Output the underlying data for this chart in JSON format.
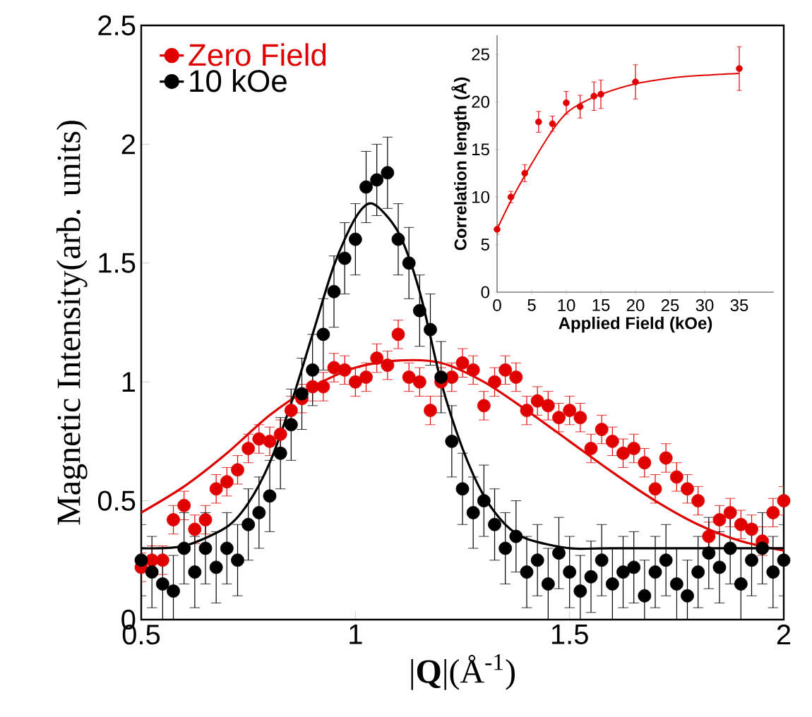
{
  "chart_data": [
    {
      "type": "scatter",
      "xlabel": "|**Q**|(Å$^{-1}$)",
      "ylabel": "Magnetic Intensity(arb. units)",
      "xlim": [
        0.5,
        2
      ],
      "ylim": [
        0,
        2.5
      ],
      "xticks": [
        0.5,
        1,
        1.5,
        2
      ],
      "yticks": [
        0,
        0.5,
        1,
        1.5,
        2,
        2.5
      ],
      "legend": "top left",
      "x": [
        0.5,
        0.525,
        0.55,
        0.575,
        0.6,
        0.625,
        0.65,
        0.675,
        0.7,
        0.725,
        0.75,
        0.775,
        0.8,
        0.825,
        0.85,
        0.875,
        0.9,
        0.925,
        0.95,
        0.975,
        1.0,
        1.025,
        1.05,
        1.075,
        1.1,
        1.125,
        1.15,
        1.175,
        1.2,
        1.225,
        1.25,
        1.275,
        1.3,
        1.325,
        1.35,
        1.375,
        1.4,
        1.425,
        1.45,
        1.475,
        1.5,
        1.525,
        1.55,
        1.575,
        1.6,
        1.625,
        1.65,
        1.675,
        1.7,
        1.725,
        1.75,
        1.775,
        1.8,
        1.825,
        1.85,
        1.875,
        1.9,
        1.925,
        1.95,
        1.975,
        2.0
      ],
      "series": [
        {
          "name": "Zero Field",
          "marker": "circle",
          "color": "#e00000",
          "values": [
            0.22,
            0.25,
            0.25,
            0.42,
            0.48,
            0.38,
            0.42,
            0.55,
            0.58,
            0.63,
            0.72,
            0.76,
            0.75,
            0.78,
            0.88,
            0.93,
            0.98,
            0.98,
            1.06,
            1.05,
            1.0,
            1.02,
            1.1,
            1.07,
            1.2,
            1.02,
            1.0,
            0.88,
            1.0,
            1.02,
            1.08,
            1.05,
            0.9,
            1.0,
            1.05,
            1.02,
            0.88,
            0.92,
            0.9,
            0.85,
            0.88,
            0.85,
            0.72,
            0.8,
            0.75,
            0.7,
            0.72,
            0.66,
            0.55,
            0.68,
            0.6,
            0.55,
            0.5,
            0.35,
            0.42,
            0.45,
            0.4,
            0.38,
            0.33,
            0.45,
            0.5
          ],
          "errors": [
            0.06,
            0.06,
            0.06,
            0.06,
            0.06,
            0.06,
            0.06,
            0.06,
            0.06,
            0.06,
            0.06,
            0.06,
            0.06,
            0.06,
            0.06,
            0.06,
            0.06,
            0.06,
            0.06,
            0.06,
            0.06,
            0.06,
            0.06,
            0.06,
            0.06,
            0.06,
            0.06,
            0.06,
            0.06,
            0.06,
            0.06,
            0.06,
            0.06,
            0.06,
            0.06,
            0.06,
            0.06,
            0.06,
            0.06,
            0.06,
            0.06,
            0.06,
            0.06,
            0.06,
            0.06,
            0.06,
            0.06,
            0.06,
            0.06,
            0.06,
            0.06,
            0.06,
            0.06,
            0.06,
            0.06,
            0.06,
            0.06,
            0.06,
            0.06,
            0.06,
            0.06
          ]
        },
        {
          "name": "10 kOe",
          "marker": "circle",
          "color": "#000000",
          "values": [
            0.25,
            0.2,
            0.15,
            0.12,
            0.3,
            0.2,
            0.3,
            0.22,
            0.3,
            0.25,
            0.4,
            0.45,
            0.52,
            0.7,
            0.82,
            0.95,
            1.05,
            1.2,
            1.38,
            1.52,
            1.6,
            1.82,
            1.85,
            1.88,
            1.6,
            1.5,
            1.3,
            1.22,
            1.02,
            0.75,
            0.55,
            0.45,
            0.5,
            0.4,
            0.3,
            0.35,
            0.2,
            0.25,
            0.15,
            0.28,
            0.2,
            0.12,
            0.18,
            0.25,
            0.15,
            0.2,
            0.22,
            0.1,
            0.2,
            0.25,
            0.15,
            0.1,
            0.2,
            0.28,
            0.22,
            0.3,
            0.15,
            0.25,
            0.3,
            0.2,
            0.25
          ],
          "errors": [
            0.15,
            0.15,
            0.15,
            0.15,
            0.15,
            0.15,
            0.15,
            0.15,
            0.15,
            0.15,
            0.15,
            0.15,
            0.15,
            0.15,
            0.15,
            0.15,
            0.15,
            0.15,
            0.15,
            0.15,
            0.15,
            0.15,
            0.15,
            0.15,
            0.15,
            0.15,
            0.15,
            0.15,
            0.15,
            0.15,
            0.15,
            0.15,
            0.15,
            0.15,
            0.15,
            0.15,
            0.15,
            0.15,
            0.15,
            0.15,
            0.15,
            0.15,
            0.15,
            0.15,
            0.15,
            0.15,
            0.15,
            0.15,
            0.15,
            0.15,
            0.15,
            0.15,
            0.15,
            0.15,
            0.15,
            0.15,
            0.15,
            0.15,
            0.15,
            0.15,
            0.15
          ]
        },
        {
          "type": "line",
          "color": "#e00000",
          "x": [
            0.5,
            0.6,
            0.7,
            0.8,
            0.9,
            1.0,
            1.1,
            1.2,
            1.3,
            1.4,
            1.5,
            1.6,
            1.7,
            1.8,
            1.9,
            2.0
          ],
          "values": [
            0.45,
            0.56,
            0.7,
            0.86,
            0.98,
            1.06,
            1.09,
            1.08,
            1.0,
            0.88,
            0.75,
            0.62,
            0.5,
            0.4,
            0.33,
            0.29
          ]
        },
        {
          "type": "line",
          "color": "#000000",
          "x": [
            0.5,
            0.6,
            0.7,
            0.75,
            0.8,
            0.85,
            0.9,
            0.95,
            1.0,
            1.04,
            1.1,
            1.15,
            1.2,
            1.25,
            1.3,
            1.35,
            1.4,
            1.5,
            1.6,
            2.0
          ],
          "values": [
            0.3,
            0.31,
            0.39,
            0.49,
            0.66,
            0.91,
            1.2,
            1.49,
            1.69,
            1.75,
            1.63,
            1.38,
            1.0,
            0.72,
            0.52,
            0.4,
            0.34,
            0.3,
            0.3,
            0.3
          ]
        }
      ]
    },
    {
      "type": "scatter",
      "xlabel": "Applied Field (kOe)",
      "ylabel": "Correlation length (Å)",
      "xlim": [
        0,
        40
      ],
      "ylim": [
        0,
        27
      ],
      "xticks": [
        0,
        5,
        10,
        15,
        20,
        25,
        30,
        35
      ],
      "yticks": [
        0,
        5,
        10,
        15,
        20,
        25
      ],
      "series": [
        {
          "marker": "circle",
          "color": "#e00000",
          "x": [
            0,
            2,
            4,
            6,
            8,
            10,
            12,
            14,
            15,
            20,
            35
          ],
          "values": [
            6.6,
            10,
            12.5,
            17.9,
            17.7,
            19.9,
            19.5,
            20.6,
            20.8,
            22.1,
            23.5
          ],
          "errors": [
            0.5,
            0.6,
            0.9,
            1.1,
            0.8,
            1.2,
            1.2,
            1.5,
            1.5,
            1.8,
            2.3
          ]
        },
        {
          "type": "line",
          "color": "#e00000",
          "x": [
            0,
            2,
            5,
            8,
            10,
            12,
            15,
            20,
            25,
            30,
            35
          ],
          "values": [
            6.6,
            9.6,
            13.5,
            17,
            18.8,
            19.8,
            20.8,
            21.9,
            22.5,
            22.8,
            23
          ]
        }
      ]
    }
  ]
}
